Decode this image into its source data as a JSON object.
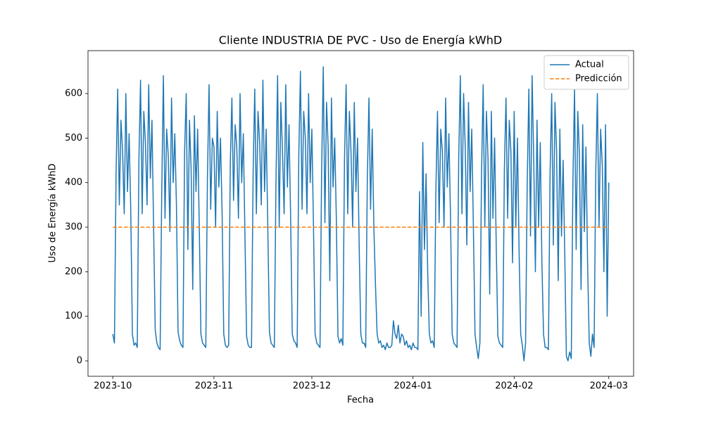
{
  "chart_data": {
    "type": "line",
    "title": "Cliente INDUSTRIA DE PVC - Uso de Energía kWhD",
    "x_label": "Fecha",
    "y_label": "Uso de Energía kWhD",
    "xlim": [
      -7.6,
      159.6
    ],
    "xticks": [
      {
        "value": 0,
        "label": "2023-10"
      },
      {
        "value": 31,
        "label": "2023-11"
      },
      {
        "value": 61,
        "label": "2023-12"
      },
      {
        "value": 92,
        "label": "2024-01"
      },
      {
        "value": 123,
        "label": "2024-02"
      },
      {
        "value": 152,
        "label": "2024-03"
      }
    ],
    "ylim": [
      -34.7,
      696.3
    ],
    "yticks": [
      0,
      100,
      200,
      300,
      400,
      500,
      600
    ],
    "legend": "upper right",
    "series": [
      {
        "name": "Actual",
        "color": "#1f77b4",
        "dash": false,
        "x": [
          0,
          0.5,
          1,
          1.5,
          2,
          2.5,
          3,
          3.5,
          4,
          4.5,
          5,
          5.5,
          6,
          6.5,
          7,
          7.5,
          8,
          8.5,
          9,
          9.5,
          10,
          10.5,
          11,
          11.5,
          12,
          12.5,
          13,
          13.5,
          14,
          14.5,
          15,
          15.5,
          16,
          16.5,
          17,
          17.5,
          18,
          18.5,
          19,
          19.5,
          20,
          20.5,
          21,
          21.5,
          22,
          22.5,
          23,
          23.5,
          24,
          24.5,
          25,
          25.5,
          26,
          26.5,
          27,
          27.5,
          28,
          28.5,
          29,
          29.5,
          30,
          30.5,
          31,
          31.5,
          32,
          32.5,
          33,
          33.5,
          34,
          34.5,
          35,
          35.5,
          36,
          36.5,
          37,
          37.5,
          38,
          38.5,
          39,
          39.5,
          40,
          40.5,
          41,
          41.5,
          42,
          42.5,
          43,
          43.5,
          44,
          44.5,
          45,
          45.5,
          46,
          46.5,
          47,
          47.5,
          48,
          48.5,
          49,
          49.5,
          50,
          50.5,
          51,
          51.5,
          52,
          52.5,
          53,
          53.5,
          54,
          54.5,
          55,
          55.5,
          56,
          56.5,
          57,
          57.5,
          58,
          58.5,
          59,
          59.5,
          60,
          60.5,
          61,
          61.5,
          62,
          62.5,
          63,
          63.5,
          64,
          64.5,
          65,
          65.5,
          66,
          66.5,
          67,
          67.5,
          68,
          68.5,
          69,
          69.5,
          70,
          70.5,
          71,
          71.5,
          72,
          72.5,
          73,
          73.5,
          74,
          74.5,
          75,
          75.5,
          76,
          76.5,
          77,
          77.5,
          78,
          78.5,
          79,
          79.5,
          80,
          80.5,
          81,
          81.5,
          82,
          82.5,
          83,
          83.5,
          84,
          84.5,
          85,
          85.5,
          86,
          86.5,
          87,
          87.5,
          88,
          88.5,
          89,
          89.5,
          90,
          90.5,
          91,
          91.5,
          92,
          92.5,
          93,
          93.5,
          94,
          94.5,
          95,
          95.5,
          96,
          96.5,
          97,
          97.5,
          98,
          98.5,
          99,
          99.5,
          100,
          100.5,
          101,
          101.5,
          102,
          102.5,
          103,
          103.5,
          104,
          104.5,
          105,
          105.5,
          106,
          106.5,
          107,
          107.5,
          108,
          108.5,
          109,
          109.5,
          110,
          110.5,
          111,
          111.5,
          112,
          112.5,
          113,
          113.5,
          114,
          114.5,
          115,
          115.5,
          116,
          116.5,
          117,
          117.5,
          118,
          118.5,
          119,
          119.5,
          120,
          120.5,
          121,
          121.5,
          122,
          122.5,
          123,
          123.5,
          124,
          124.5,
          125,
          125.5,
          126,
          126.5,
          127,
          127.5,
          128,
          128.5,
          129,
          129.5,
          130,
          130.5,
          131,
          131.5,
          132,
          132.5,
          133,
          133.5,
          134,
          134.5,
          135,
          135.5,
          136,
          136.5,
          137,
          137.5,
          138,
          138.5,
          139,
          139.5,
          140,
          140.5,
          141,
          141.5,
          142,
          142.5,
          143,
          143.5,
          144,
          144.5,
          145,
          145.5,
          146,
          146.5,
          147,
          147.5,
          148,
          148.5,
          149,
          149.5,
          150,
          150.5,
          151,
          151.5,
          152
        ],
        "values": [
          60,
          40,
          420,
          610,
          350,
          540,
          470,
          330,
          600,
          380,
          510,
          340,
          60,
          35,
          40,
          30,
          450,
          630,
          330,
          560,
          490,
          350,
          620,
          410,
          540,
          300,
          70,
          40,
          30,
          25,
          380,
          640,
          320,
          520,
          460,
          290,
          590,
          400,
          510,
          350,
          65,
          45,
          35,
          30,
          470,
          600,
          250,
          540,
          430,
          160,
          550,
          380,
          520,
          300,
          60,
          40,
          35,
          30,
          410,
          620,
          340,
          500,
          480,
          300,
          560,
          390,
          500,
          330,
          60,
          35,
          30,
          35,
          440,
          590,
          360,
          530,
          480,
          320,
          600,
          400,
          510,
          280,
          55,
          35,
          30,
          30,
          420,
          610,
          330,
          560,
          490,
          350,
          630,
          380,
          520,
          300,
          65,
          40,
          35,
          30,
          400,
          640,
          300,
          580,
          470,
          330,
          620,
          390,
          530,
          320,
          60,
          45,
          40,
          30,
          460,
          650,
          340,
          560,
          500,
          330,
          600,
          400,
          520,
          300,
          60,
          40,
          35,
          30,
          430,
          660,
          310,
          580,
          480,
          180,
          590,
          390,
          500,
          320,
          55,
          40,
          50,
          35,
          450,
          620,
          330,
          560,
          470,
          300,
          580,
          380,
          500,
          260,
          60,
          40,
          40,
          30,
          410,
          590,
          340,
          520,
          300,
          170,
          60,
          40,
          45,
          30,
          35,
          25,
          40,
          30,
          30,
          35,
          90,
          60,
          50,
          80,
          40,
          60,
          55,
          35,
          45,
          30,
          35,
          25,
          40,
          30,
          30,
          25,
          380,
          100,
          490,
          250,
          420,
          200,
          60,
          40,
          45,
          30,
          380,
          560,
          310,
          520,
          470,
          300,
          590,
          390,
          510,
          320,
          60,
          40,
          35,
          30,
          450,
          640,
          330,
          600,
          480,
          260,
          580,
          380,
          520,
          300,
          60,
          30,
          5,
          40,
          420,
          620,
          300,
          560,
          450,
          150,
          560,
          320,
          500,
          260,
          55,
          40,
          35,
          30,
          430,
          590,
          320,
          540,
          470,
          220,
          560,
          300,
          500,
          250,
          60,
          35,
          0,
          40,
          400,
          610,
          280,
          640,
          450,
          200,
          540,
          300,
          490,
          220,
          60,
          30,
          30,
          25,
          420,
          600,
          260,
          580,
          470,
          180,
          520,
          280,
          450,
          240,
          10,
          0,
          20,
          5,
          400,
          610,
          250,
          560,
          460,
          160,
          530,
          290,
          480,
          220,
          40,
          10,
          60,
          30,
          420,
          600,
          300,
          520,
          440,
          200,
          530,
          100,
          400
        ]
      },
      {
        "name": "Predicción",
        "color": "#ff7f0e",
        "dash": true,
        "x": [
          0,
          152
        ],
        "values": [
          300,
          300
        ]
      }
    ]
  }
}
